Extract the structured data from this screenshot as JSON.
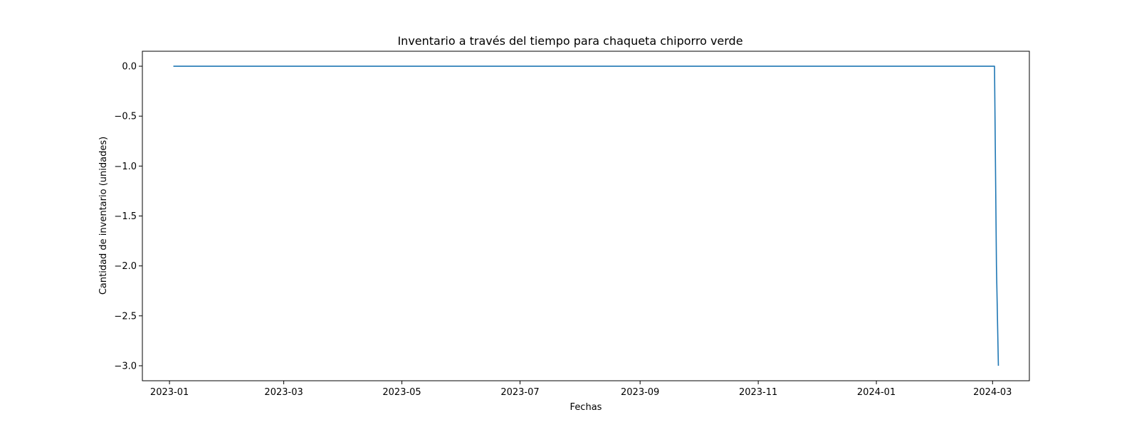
{
  "chart_data": {
    "type": "line",
    "title": "Inventario a través del tiempo para chaqueta chiporro verde",
    "xlabel": "Fechas",
    "ylabel": "Cantidad de inventario (unidades)",
    "x_type": "date",
    "xlim": [
      "2022-12-18",
      "2024-03-20"
    ],
    "ylim": [
      -3.15,
      0.15
    ],
    "grid": false,
    "x_ticks": [
      {
        "value": "2023-01-01",
        "label": "2023-01"
      },
      {
        "value": "2023-03-01",
        "label": "2023-03"
      },
      {
        "value": "2023-05-01",
        "label": "2023-05"
      },
      {
        "value": "2023-07-01",
        "label": "2023-07"
      },
      {
        "value": "2023-09-01",
        "label": "2023-09"
      },
      {
        "value": "2023-11-01",
        "label": "2023-11"
      },
      {
        "value": "2024-01-01",
        "label": "2024-01"
      },
      {
        "value": "2024-03-01",
        "label": "2024-03"
      }
    ],
    "y_ticks": [
      {
        "value": 0.0,
        "label": "0.0"
      },
      {
        "value": -0.5,
        "label": "−0.5"
      },
      {
        "value": -1.0,
        "label": "−1.0"
      },
      {
        "value": -1.5,
        "label": "−1.5"
      },
      {
        "value": -2.0,
        "label": "−2.0"
      },
      {
        "value": -2.5,
        "label": "−2.5"
      },
      {
        "value": -3.0,
        "label": "−3.0"
      }
    ],
    "series": [
      {
        "color": "#1f77b4",
        "points": [
          {
            "x": "2023-01-03",
            "y": 0
          },
          {
            "x": "2024-03-02",
            "y": 0
          },
          {
            "x": "2024-03-03",
            "y": -2
          },
          {
            "x": "2024-03-04",
            "y": -3
          }
        ]
      }
    ]
  }
}
